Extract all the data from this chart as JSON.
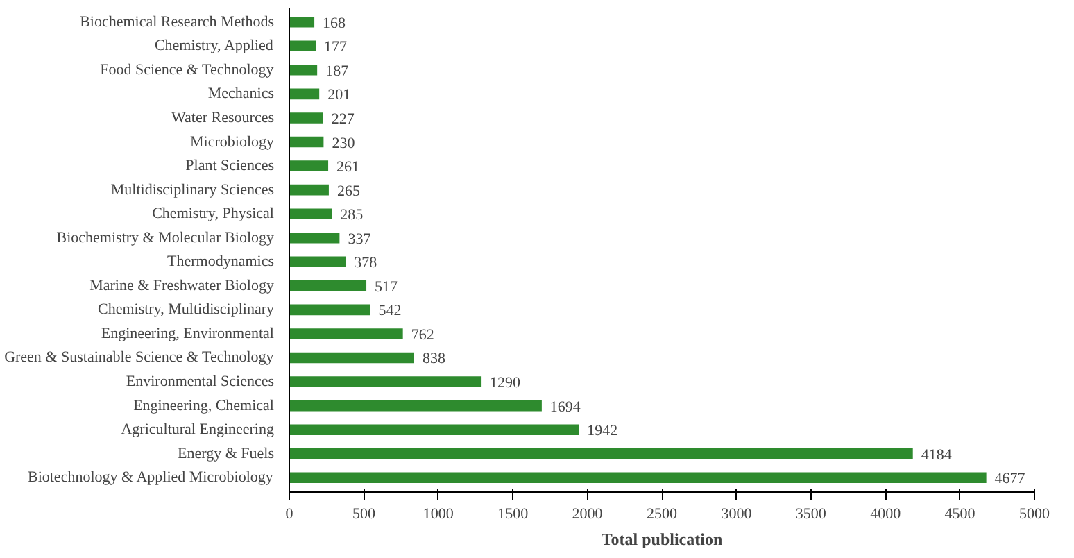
{
  "chart_data": {
    "type": "bar",
    "orientation": "horizontal",
    "xlabel": "Total publication",
    "categories": [
      "Biochemical Research Methods",
      "Chemistry, Applied",
      "Food Science & Technology",
      "Mechanics",
      "Water Resources",
      "Microbiology",
      "Plant Sciences",
      "Multidisciplinary Sciences",
      "Chemistry, Physical",
      "Biochemistry & Molecular Biology",
      "Thermodynamics",
      "Marine & Freshwater Biology",
      "Chemistry, Multidisciplinary",
      "Engineering, Environmental",
      "Green & Sustainable Science & Technology",
      "Environmental Sciences",
      "Engineering, Chemical",
      "Agricultural Engineering",
      "Energy & Fuels",
      "Biotechnology & Applied Microbiology"
    ],
    "values": [
      168,
      177,
      187,
      201,
      227,
      230,
      261,
      265,
      285,
      337,
      378,
      517,
      542,
      762,
      838,
      1290,
      1694,
      1942,
      4184,
      4677
    ],
    "color": "#2e8b2e",
    "xlim": [
      0,
      5000
    ],
    "xticks": [
      0,
      500,
      1000,
      1500,
      2000,
      2500,
      3000,
      3500,
      4000,
      4500,
      5000
    ],
    "grid": false,
    "data_labels": true
  }
}
